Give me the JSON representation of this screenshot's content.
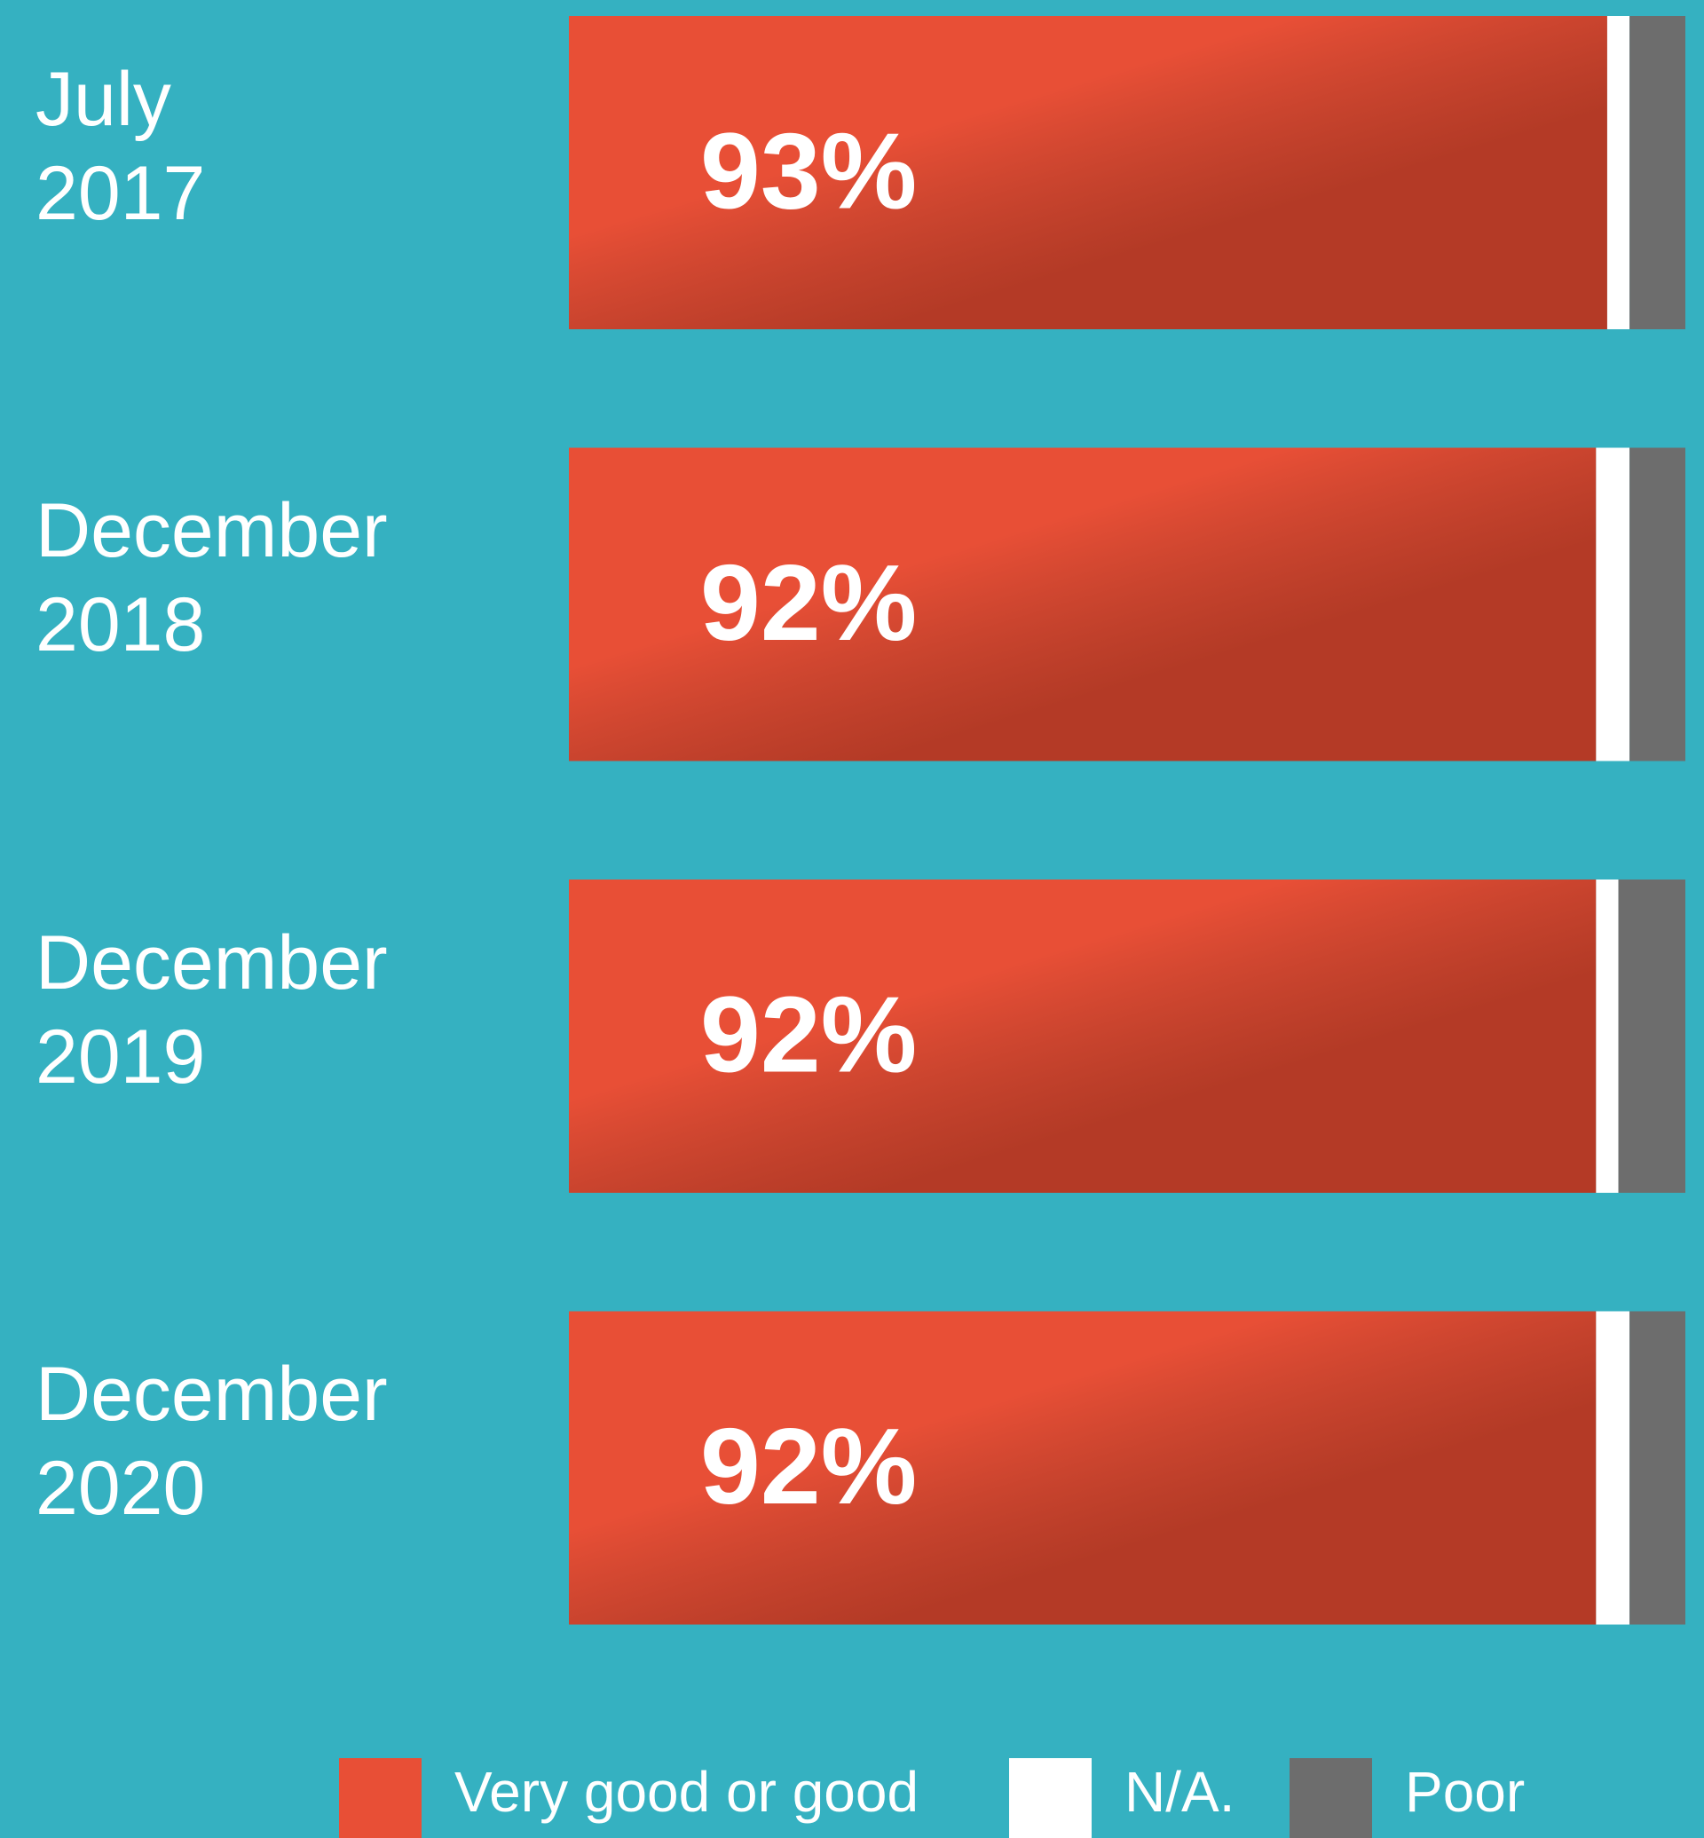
{
  "chart_data": {
    "type": "stacked-barh",
    "categories": [
      "July 2017",
      "December 2018",
      "December 2019",
      "December 2020"
    ],
    "series": [
      {
        "name": "Very good or good",
        "color": "#e84f36",
        "values": [
          93,
          92,
          92,
          92
        ],
        "value_labels": [
          "93%",
          "92%",
          "92%",
          "92%"
        ]
      },
      {
        "name": "N/A.",
        "color": "#ffffff",
        "values": [
          2,
          3,
          2,
          3
        ]
      },
      {
        "name": "Poor",
        "color": "#6d6d6d",
        "values": [
          5,
          5,
          6,
          5
        ]
      }
    ],
    "xlim": [
      0,
      100
    ]
  }
}
